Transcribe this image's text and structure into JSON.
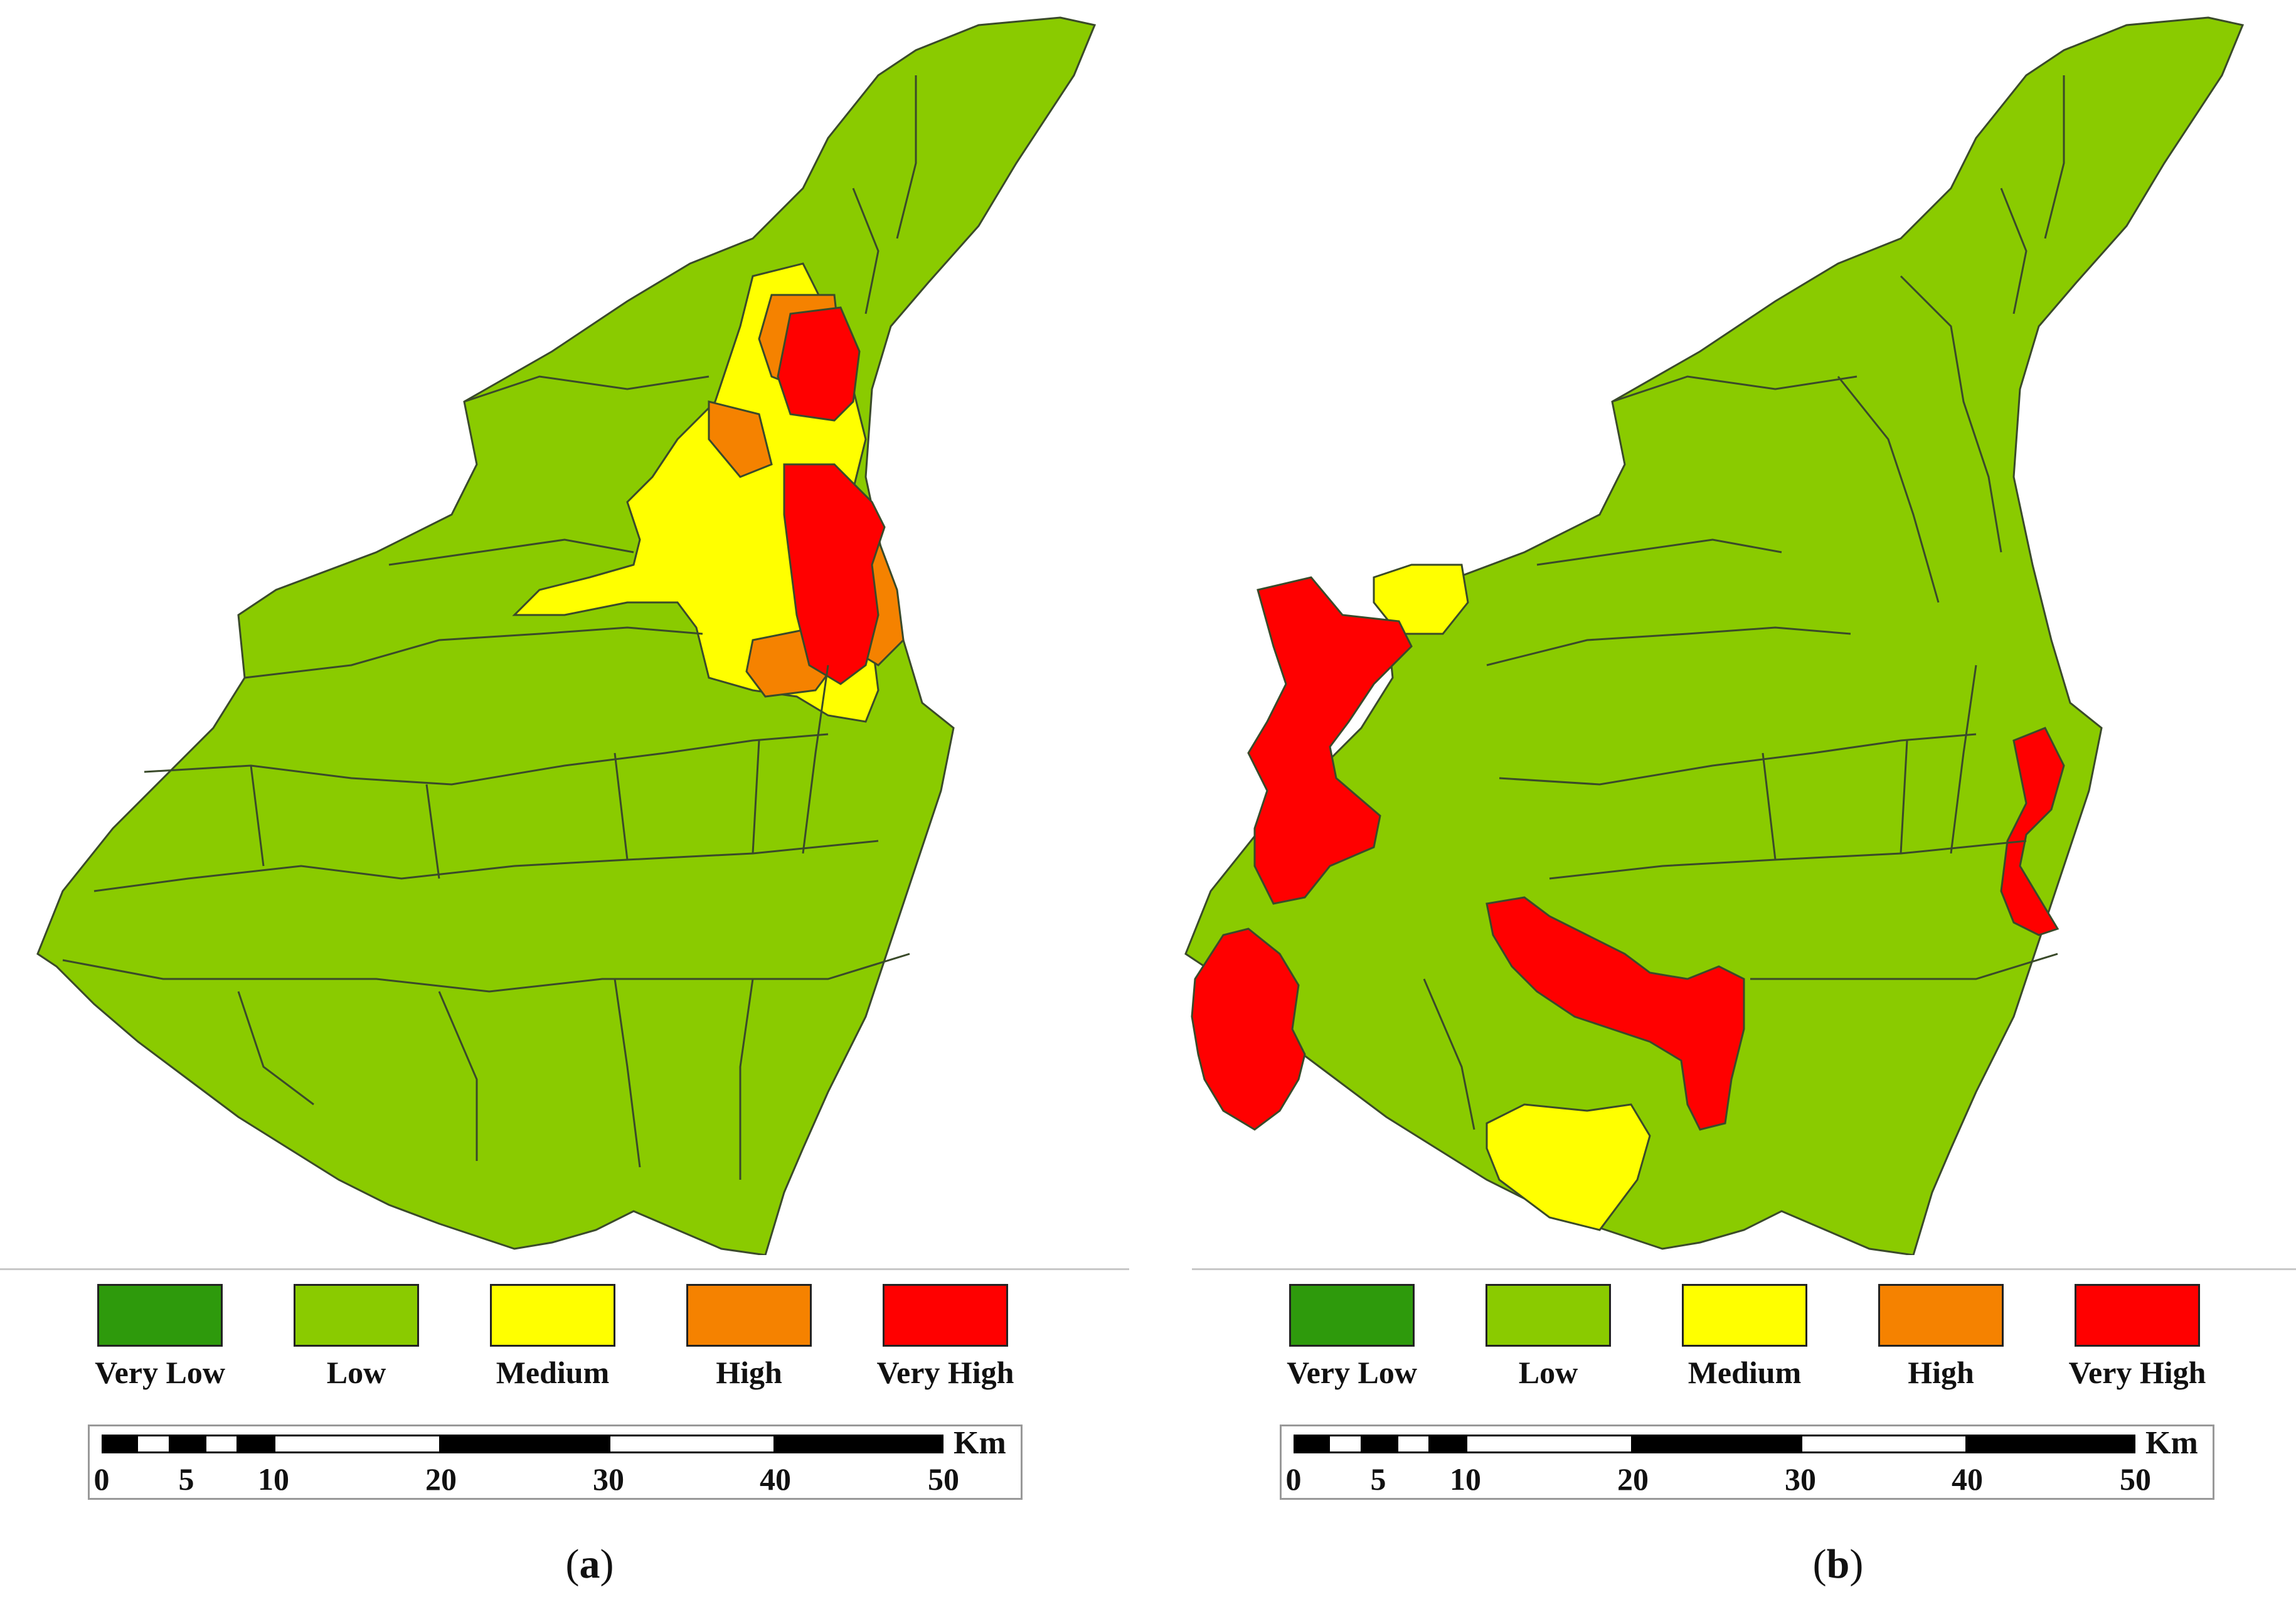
{
  "colors": {
    "very_low": "#2e9a0c",
    "low": "#8acb00",
    "medium": "#ffff00",
    "high": "#f58200",
    "very_high": "#ff0000",
    "boundary": "#3a4a2a"
  },
  "legend": [
    {
      "label": "Very Low",
      "class": "very_low"
    },
    {
      "label": "Low",
      "class": "low"
    },
    {
      "label": "Medium",
      "class": "medium"
    },
    {
      "label": "High",
      "class": "high"
    },
    {
      "label": "Very High",
      "class": "very_high"
    }
  ],
  "scale": {
    "unit": "Km",
    "ticks": [
      "0",
      "5",
      "10",
      "20",
      "30",
      "40",
      "50"
    ]
  },
  "panels": [
    {
      "id": "a",
      "caption_letter": "a"
    },
    {
      "id": "b",
      "caption_letter": "b"
    }
  ]
}
